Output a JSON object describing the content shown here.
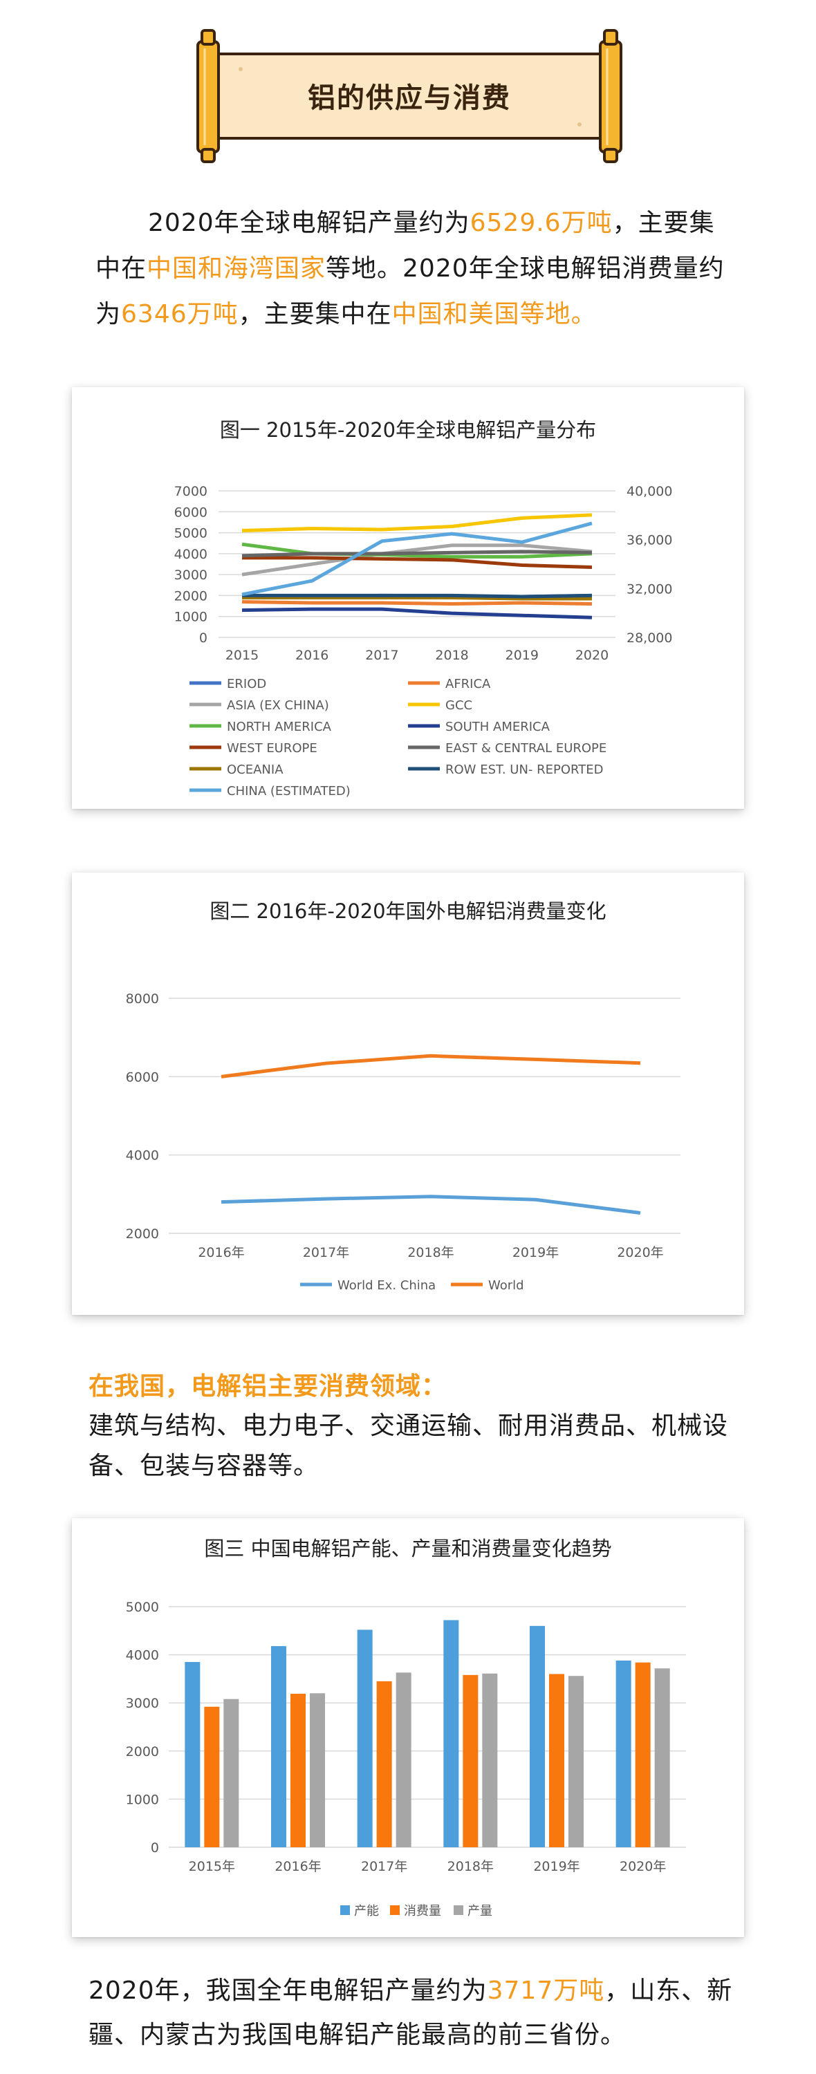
{
  "banner": {
    "title": "铝的供应与消费"
  },
  "intro": {
    "p1": "2020年全球电解铝产量约为",
    "v1": "6529.6万吨",
    "p2": "，主要集中在",
    "v2": "中国和海湾国家",
    "p3": "等地。2020年全球电解铝消费量约为",
    "v3": "6346万吨",
    "p4": "，主要集中在",
    "v4": "中国和美国等地。"
  },
  "section2": {
    "heading": "在我国，电解铝主要消费领域：",
    "body": "建筑与结构、电力电子、交通运输、耐用消费品、机械设备、包装与容器等。"
  },
  "footer": {
    "p1": "2020年，我国全年电解铝产量约为",
    "v1": "3717万吨",
    "p2": "，山东、新疆、内蒙古为我国电解铝产能最高的前三省份。"
  },
  "chart_data": [
    {
      "type": "line",
      "title": "图一 2015年-2020年全球电解铝产量分布",
      "categories": [
        "2015",
        "2016",
        "2017",
        "2018",
        "2019",
        "2020"
      ],
      "ylim": [
        0,
        7000
      ],
      "yticks": [
        0,
        1000,
        2000,
        3000,
        4000,
        5000,
        6000,
        7000
      ],
      "y2lim": [
        28000,
        40000
      ],
      "y2ticks": [
        "28,000",
        "32,000",
        "36,000",
        "40,000"
      ],
      "y2ticks_values": [
        28000,
        32000,
        36000,
        40000
      ],
      "grid": true,
      "legend": "bottom",
      "series": [
        {
          "name": "ERIOD",
          "color": "#4472c4",
          "axis": "left",
          "values": [
            1900,
            1950,
            2000,
            1980,
            1950,
            2000
          ]
        },
        {
          "name": "AFRICA",
          "color": "#ed7d31",
          "axis": "left",
          "values": [
            1700,
            1650,
            1650,
            1600,
            1650,
            1600
          ]
        },
        {
          "name": "ASIA (EX CHINA)",
          "color": "#a5a5a5",
          "axis": "left",
          "values": [
            3000,
            3500,
            4000,
            4400,
            4400,
            4100
          ]
        },
        {
          "name": "GCC",
          "color": "#f7c600",
          "axis": "left",
          "values": [
            5100,
            5200,
            5150,
            5300,
            5700,
            5850
          ]
        },
        {
          "name": "NORTH AMERICA",
          "color": "#5fb844",
          "axis": "left",
          "values": [
            4450,
            4000,
            3950,
            3850,
            3850,
            4000
          ]
        },
        {
          "name": "SOUTH AMERICA",
          "color": "#243f8f",
          "axis": "left",
          "values": [
            1300,
            1350,
            1350,
            1150,
            1050,
            950
          ]
        },
        {
          "name": "WEST EUROPE",
          "color": "#9c3a0b",
          "axis": "left",
          "values": [
            3800,
            3800,
            3750,
            3700,
            3450,
            3350
          ]
        },
        {
          "name": "EAST & CENTRAL EUROPE",
          "color": "#666666",
          "axis": "left",
          "values": [
            3900,
            4000,
            4000,
            4050,
            4100,
            4050
          ]
        },
        {
          "name": "OCEANIA",
          "color": "#9a7600",
          "axis": "left",
          "values": [
            1900,
            1900,
            1900,
            1900,
            1850,
            1850
          ]
        },
        {
          "name": "ROW EST. UN- REPORTED",
          "color": "#1f4e79",
          "axis": "left",
          "values": [
            2000,
            2000,
            2000,
            2000,
            1950,
            2000
          ]
        },
        {
          "name": "CHINA (ESTIMATED)",
          "color": "#5aa6dd",
          "axis": "left",
          "values": [
            2050,
            2700,
            4600,
            4950,
            4550,
            5450
          ]
        }
      ]
    },
    {
      "type": "line",
      "title": "图二 2016年-2020年国外电解铝消费量变化",
      "categories": [
        "2016年",
        "2017年",
        "2018年",
        "2019年",
        "2020年"
      ],
      "ylim": [
        2000,
        8000
      ],
      "yticks": [
        2000,
        4000,
        6000,
        8000
      ],
      "grid": true,
      "legend": "bottom",
      "series": [
        {
          "name": "World Ex. China",
          "color": "#5aa0d8",
          "values": [
            2800,
            2880,
            2940,
            2860,
            2520
          ]
        },
        {
          "name": "World",
          "color": "#f07a1c",
          "values": [
            6000,
            6340,
            6530,
            6440,
            6346
          ]
        }
      ]
    },
    {
      "type": "bar",
      "title": "图三 中国电解铝产能、产量和消费量变化趋势",
      "categories": [
        "2015年",
        "2016年",
        "2017年",
        "2018年",
        "2019年",
        "2020年"
      ],
      "ylim": [
        0,
        5000
      ],
      "yticks": [
        0,
        1000,
        2000,
        3000,
        4000,
        5000
      ],
      "grid": true,
      "legend": "bottom",
      "series": [
        {
          "name": "产能",
          "color": "#4d9fdc",
          "values": [
            3850,
            4180,
            4520,
            4720,
            4600,
            3880
          ]
        },
        {
          "name": "消费量",
          "color": "#f9780e",
          "values": [
            2920,
            3190,
            3450,
            3580,
            3600,
            3840
          ]
        },
        {
          "name": "产量",
          "color": "#a6a6a6",
          "values": [
            3080,
            3200,
            3630,
            3610,
            3560,
            3717
          ]
        }
      ]
    }
  ]
}
